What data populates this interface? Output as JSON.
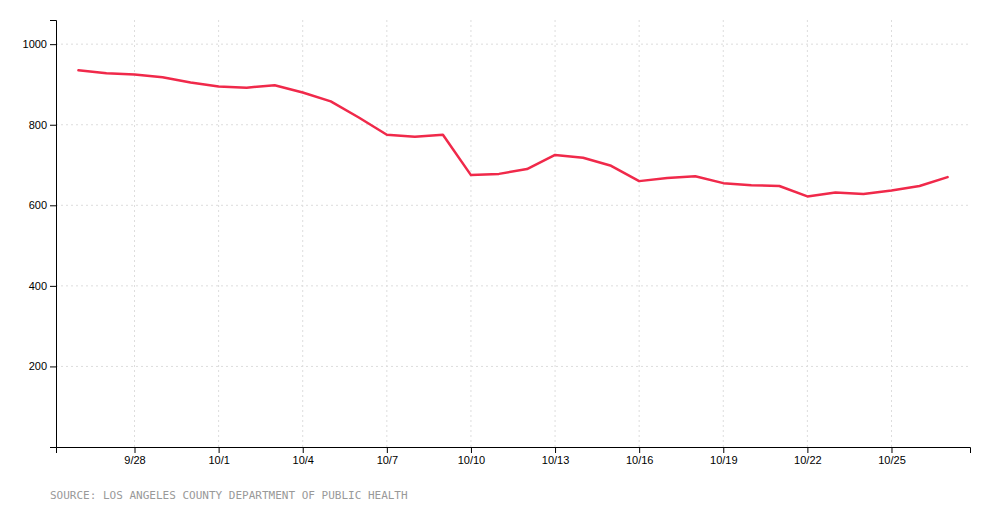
{
  "chart_data": {
    "type": "line",
    "categories": [
      null,
      null,
      "9/28",
      null,
      null,
      "10/1",
      null,
      null,
      "10/4",
      null,
      null,
      "10/7",
      null,
      null,
      "10/10",
      null,
      null,
      "10/13",
      null,
      null,
      "10/16",
      null,
      null,
      "10/19",
      null,
      null,
      "10/22",
      null,
      null,
      "10/25",
      null,
      null
    ],
    "values": [
      935,
      928,
      925,
      918,
      905,
      895,
      892,
      898,
      880,
      858,
      818,
      775,
      770,
      775,
      675,
      678,
      690,
      725,
      718,
      698,
      660,
      668,
      672,
      655,
      650,
      648,
      622,
      632,
      628,
      637,
      648,
      670
    ],
    "color": "#f0294a",
    "ylim": [
      0,
      1060
    ],
    "yticks": [
      200,
      400,
      600,
      800,
      1000
    ],
    "grid": true,
    "annotations": [
      "SOURCE: LOS ANGELES COUNTY DEPARTMENT OF PUBLIC HEALTH"
    ]
  }
}
